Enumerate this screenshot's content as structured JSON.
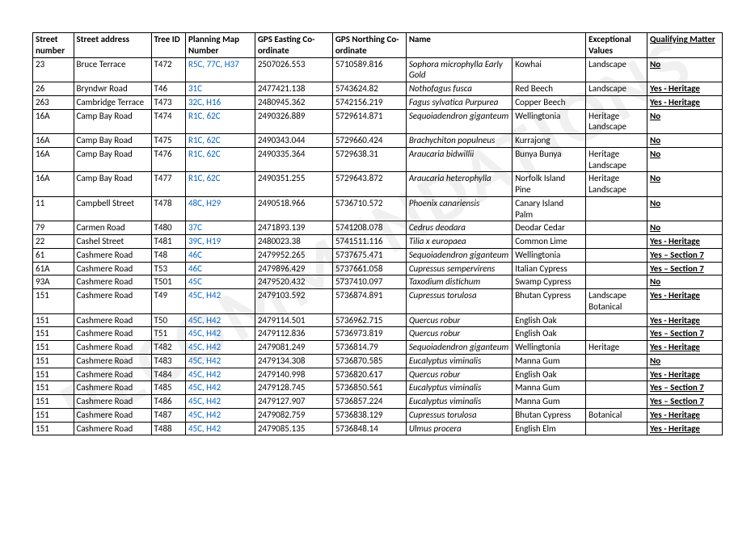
{
  "watermark": "RECOMMENDATIONS",
  "headers": [
    "Street number",
    "Street address",
    "Tree ID",
    "Planning Map Number",
    "GPS Easting Co-ordinate",
    "GPS Northing Co-ordinate",
    "Name",
    "",
    "Exceptional Values",
    "Qualifying Matter"
  ],
  "rows": [
    {
      "sn": "23",
      "addr": "Bruce Terrace",
      "tid": "T472",
      "pmn": "R5C, 77C, H37",
      "east": "2507026.553",
      "north": "5710589.816",
      "sci": "Sophora microphylla Early Gold",
      "common": "Kowhai",
      "ev": "Landscape",
      "qm": "No"
    },
    {
      "sn": "26",
      "addr": "Bryndwr Road",
      "tid": "T46",
      "pmn": "31C",
      "east": "2477421.138",
      "north": "5743624.82",
      "sci": "Nothofagus fusca",
      "common": "Red Beech",
      "ev": "Landscape",
      "qm": "Yes - Heritage"
    },
    {
      "sn": "263",
      "addr": "Cambridge Terrace",
      "tid": "T473",
      "pmn": "32C, H16",
      "east": "2480945.362",
      "north": "5742156.219",
      "sci": "Fagus sylvatica Purpurea",
      "common": "Copper Beech",
      "ev": "",
      "qm": "Yes - Heritage"
    },
    {
      "sn": "16A",
      "addr": "Camp Bay Road",
      "tid": "T474",
      "pmn": "R1C, 62C",
      "east": "2490326.889",
      "north": "5729614.871",
      "sci": "Sequoiadendron giganteum",
      "common": "Wellingtonia",
      "ev": "Heritage Landscape",
      "qm": "No"
    },
    {
      "sn": "16A",
      "addr": "Camp Bay Road",
      "tid": "T475",
      "pmn": "R1C, 62C",
      "east": "2490343.044",
      "north": "5729660.424",
      "sci": "Brachychiton populneus",
      "common": "Kurrajong",
      "ev": "",
      "qm": "No"
    },
    {
      "sn": "16A",
      "addr": "Camp Bay Road",
      "tid": "T476",
      "pmn": "R1C, 62C",
      "east": "2490335.364",
      "north": "5729638.31",
      "sci": "Araucaria bidwillii",
      "common": "Bunya Bunya",
      "ev": "Heritage Landscape",
      "qm": "No"
    },
    {
      "sn": "16A",
      "addr": "Camp Bay Road",
      "tid": "T477",
      "pmn": "R1C, 62C",
      "east": "2490351.255",
      "north": "5729643.872",
      "sci": "Araucaria heterophylla",
      "common": "Norfolk Island Pine",
      "ev": "Heritage Landscape",
      "qm": "No"
    },
    {
      "sn": "11",
      "addr": "Campbell Street",
      "tid": "T478",
      "pmn": "48C, H29",
      "east": "2490518.966",
      "north": "5736710.572",
      "sci": "Phoenix canariensis",
      "common": "Canary Island Palm",
      "ev": "",
      "qm": "No"
    },
    {
      "sn": "79",
      "addr": "Carmen Road",
      "tid": "T480",
      "pmn": "37C",
      "east": "2471893.139",
      "north": "5741208.078",
      "sci": "Cedrus deodara",
      "common": "Deodar Cedar",
      "ev": "",
      "qm": "No"
    },
    {
      "sn": "22",
      "addr": "Cashel Street",
      "tid": "T481",
      "pmn": "39C, H19",
      "east": "2480023.38",
      "north": "5741511.116",
      "sci": "Tilia x europaea",
      "common": "Common Lime",
      "ev": "",
      "qm": "Yes - Heritage"
    },
    {
      "sn": "61",
      "addr": "Cashmere Road",
      "tid": "T48",
      "pmn": "46C",
      "east": "2479952.265",
      "north": "5737675.471",
      "sci": "Sequoiadendron giganteum",
      "common": "Wellingtonia",
      "ev": "",
      "qm": "Yes – Section 7"
    },
    {
      "sn": "61A",
      "addr": "Cashmere Road",
      "tid": "T53",
      "pmn": "46C",
      "east": "2479896.429",
      "north": "5737661.058",
      "sci": "Cupressus sempervirens",
      "common": "Italian Cypress",
      "ev": "",
      "qm": "Yes – Section 7"
    },
    {
      "sn": "93A",
      "addr": "Cashmere Road",
      "tid": "T501",
      "pmn": "45C",
      "east": "2479520.432",
      "north": "5737410.097",
      "sci": "Taxodium distichum",
      "common": "Swamp Cypress",
      "ev": "",
      "qm": "No"
    },
    {
      "sn": "151",
      "addr": "Cashmere Road",
      "tid": "T49",
      "pmn": "45C, H42",
      "east": "2479103.592",
      "north": "5736874.891",
      "sci": "Cupressus torulosa",
      "common": "Bhutan Cypress",
      "ev": "Landscape Botanical",
      "qm": "Yes - Heritage"
    },
    {
      "sn": "151",
      "addr": "Cashmere Road",
      "tid": "T50",
      "pmn": "45C, H42",
      "east": "2479114.501",
      "north": "5736962.715",
      "sci": "Quercus robur",
      "common": "English Oak",
      "ev": "",
      "qm": "Yes - Heritage"
    },
    {
      "sn": "151",
      "addr": "Cashmere Road",
      "tid": "T51",
      "pmn": "45C, H42",
      "east": "2479112.836",
      "north": "5736973.819",
      "sci": "Quercus robur",
      "common": "English Oak",
      "ev": "",
      "qm": "Yes – Section 7"
    },
    {
      "sn": "151",
      "addr": "Cashmere Road",
      "tid": "T482",
      "pmn": "45C, H42",
      "east": "2479081.249",
      "north": "5736814.79",
      "sci": "Sequoiadendron giganteum",
      "common": "Wellingtonia",
      "ev": "Heritage",
      "qm": "Yes - Heritage"
    },
    {
      "sn": "151",
      "addr": "Cashmere Road",
      "tid": "T483",
      "pmn": "45C, H42",
      "east": "2479134.308",
      "north": "5736870.585",
      "sci": "Eucalyptus viminalis",
      "common": "Manna Gum",
      "ev": "",
      "qm": "No"
    },
    {
      "sn": "151",
      "addr": "Cashmere Road",
      "tid": "T484",
      "pmn": "45C, H42",
      "east": "2479140.998",
      "north": "5736820.617",
      "sci": "Quercus robur",
      "common": "English Oak",
      "ev": "",
      "qm": "Yes - Heritage"
    },
    {
      "sn": "151",
      "addr": "Cashmere Road",
      "tid": "T485",
      "pmn": "45C, H42",
      "east": "2479128.745",
      "north": "5736850.561",
      "sci": "Eucalyptus viminalis",
      "common": "Manna Gum",
      "ev": "",
      "qm": "Yes – Section 7"
    },
    {
      "sn": "151",
      "addr": "Cashmere Road",
      "tid": "T486",
      "pmn": "45C, H42",
      "east": "2479127.907",
      "north": "5736857.224",
      "sci": "Eucalyptus viminalis",
      "common": "Manna Gum",
      "ev": "",
      "qm": "Yes – Section 7"
    },
    {
      "sn": "151",
      "addr": "Cashmere Road",
      "tid": "T487",
      "pmn": "45C, H42",
      "east": "2479082.759",
      "north": "5736838.129",
      "sci": "Cupressus torulosa",
      "common": "Bhutan Cypress",
      "ev": "Botanical",
      "qm": "Yes - Heritage"
    },
    {
      "sn": "151",
      "addr": "Cashmere Road",
      "tid": "T488",
      "pmn": "45C, H42",
      "east": "2479085.135",
      "north": "5736848.14",
      "sci": "Ulmus procera",
      "common": "English Elm",
      "ev": "",
      "qm": "Yes - Heritage"
    }
  ]
}
